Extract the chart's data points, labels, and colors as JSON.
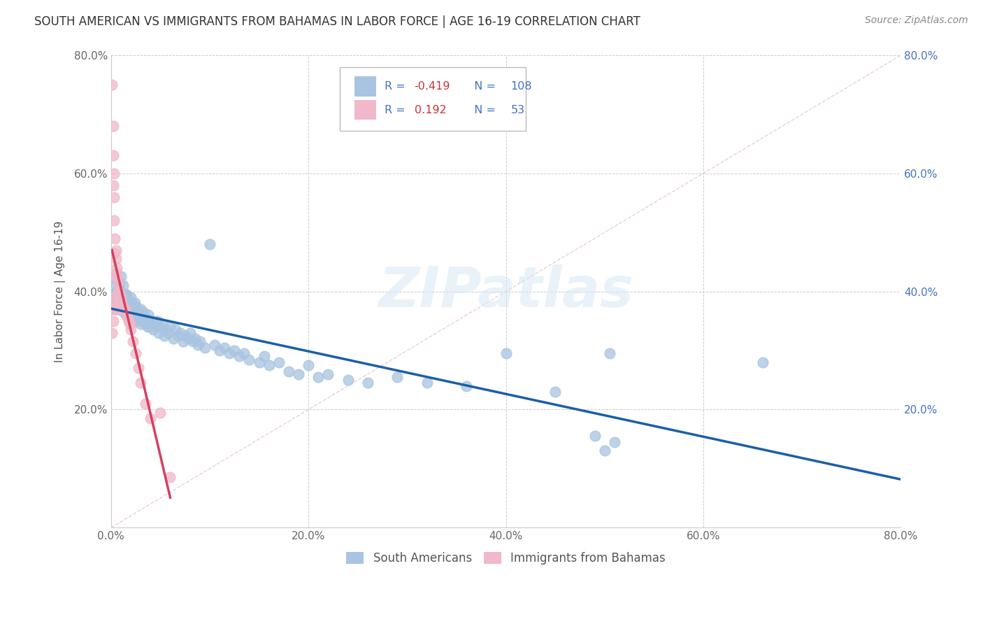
{
  "title": "SOUTH AMERICAN VS IMMIGRANTS FROM BAHAMAS IN LABOR FORCE | AGE 16-19 CORRELATION CHART",
  "source": "Source: ZipAtlas.com",
  "ylabel": "In Labor Force | Age 16-19",
  "xlim": [
    0,
    0.8
  ],
  "ylim": [
    0,
    0.8
  ],
  "xticks": [
    0.0,
    0.2,
    0.4,
    0.6,
    0.8
  ],
  "yticks": [
    0.0,
    0.2,
    0.4,
    0.6,
    0.8
  ],
  "blue_R": -0.419,
  "blue_N": 108,
  "pink_R": 0.192,
  "pink_N": 53,
  "blue_color": "#a8c4e0",
  "blue_line_color": "#1a5fa8",
  "pink_color": "#f0b8c8",
  "pink_line_color": "#d44060",
  "legend_label_blue": "South Americans",
  "legend_label_pink": "Immigrants from Bahamas",
  "watermark": "ZIPatlas",
  "background_color": "#ffffff",
  "grid_color": "#cccccc",
  "blue_scatter_x": [
    0.002,
    0.003,
    0.004,
    0.005,
    0.005,
    0.006,
    0.006,
    0.007,
    0.007,
    0.008,
    0.008,
    0.009,
    0.009,
    0.01,
    0.01,
    0.01,
    0.011,
    0.011,
    0.012,
    0.012,
    0.013,
    0.013,
    0.014,
    0.014,
    0.015,
    0.015,
    0.016,
    0.016,
    0.017,
    0.018,
    0.018,
    0.019,
    0.02,
    0.02,
    0.021,
    0.022,
    0.023,
    0.023,
    0.024,
    0.025,
    0.025,
    0.026,
    0.027,
    0.028,
    0.03,
    0.03,
    0.031,
    0.032,
    0.033,
    0.035,
    0.036,
    0.037,
    0.038,
    0.04,
    0.042,
    0.043,
    0.045,
    0.047,
    0.048,
    0.05,
    0.052,
    0.054,
    0.056,
    0.058,
    0.06,
    0.063,
    0.065,
    0.068,
    0.07,
    0.073,
    0.075,
    0.078,
    0.08,
    0.083,
    0.085,
    0.088,
    0.09,
    0.095,
    0.1,
    0.105,
    0.11,
    0.115,
    0.12,
    0.125,
    0.13,
    0.135,
    0.14,
    0.15,
    0.155,
    0.16,
    0.17,
    0.18,
    0.19,
    0.2,
    0.21,
    0.22,
    0.24,
    0.26,
    0.29,
    0.32,
    0.36,
    0.4,
    0.45,
    0.49,
    0.5,
    0.505,
    0.51,
    0.66
  ],
  "blue_scatter_y": [
    0.395,
    0.38,
    0.41,
    0.42,
    0.39,
    0.4,
    0.43,
    0.375,
    0.395,
    0.385,
    0.405,
    0.37,
    0.415,
    0.395,
    0.38,
    0.425,
    0.39,
    0.37,
    0.395,
    0.41,
    0.38,
    0.365,
    0.395,
    0.375,
    0.39,
    0.36,
    0.395,
    0.375,
    0.38,
    0.37,
    0.385,
    0.365,
    0.39,
    0.355,
    0.38,
    0.365,
    0.375,
    0.355,
    0.38,
    0.36,
    0.375,
    0.35,
    0.365,
    0.355,
    0.37,
    0.345,
    0.36,
    0.35,
    0.365,
    0.345,
    0.355,
    0.34,
    0.36,
    0.34,
    0.35,
    0.335,
    0.345,
    0.35,
    0.33,
    0.34,
    0.345,
    0.325,
    0.335,
    0.33,
    0.34,
    0.32,
    0.335,
    0.325,
    0.33,
    0.315,
    0.325,
    0.32,
    0.33,
    0.315,
    0.32,
    0.31,
    0.315,
    0.305,
    0.48,
    0.31,
    0.3,
    0.305,
    0.295,
    0.3,
    0.29,
    0.295,
    0.285,
    0.28,
    0.29,
    0.275,
    0.28,
    0.265,
    0.26,
    0.275,
    0.255,
    0.26,
    0.25,
    0.245,
    0.255,
    0.245,
    0.24,
    0.295,
    0.23,
    0.155,
    0.13,
    0.295,
    0.145,
    0.28
  ],
  "pink_scatter_x": [
    0.001,
    0.001,
    0.001,
    0.002,
    0.002,
    0.002,
    0.002,
    0.003,
    0.003,
    0.003,
    0.003,
    0.003,
    0.004,
    0.004,
    0.004,
    0.005,
    0.005,
    0.005,
    0.005,
    0.006,
    0.006,
    0.006,
    0.006,
    0.007,
    0.007,
    0.007,
    0.007,
    0.008,
    0.008,
    0.008,
    0.009,
    0.009,
    0.01,
    0.01,
    0.011,
    0.011,
    0.012,
    0.013,
    0.014,
    0.015,
    0.016,
    0.017,
    0.018,
    0.019,
    0.02,
    0.022,
    0.025,
    0.028,
    0.03,
    0.035,
    0.04,
    0.05,
    0.06
  ],
  "pink_scatter_y": [
    0.75,
    0.37,
    0.33,
    0.68,
    0.63,
    0.58,
    0.35,
    0.6,
    0.56,
    0.52,
    0.385,
    0.37,
    0.49,
    0.465,
    0.37,
    0.47,
    0.455,
    0.43,
    0.37,
    0.44,
    0.425,
    0.395,
    0.37,
    0.415,
    0.4,
    0.385,
    0.37,
    0.4,
    0.385,
    0.37,
    0.39,
    0.37,
    0.39,
    0.37,
    0.38,
    0.37,
    0.375,
    0.37,
    0.37,
    0.365,
    0.36,
    0.355,
    0.35,
    0.345,
    0.335,
    0.315,
    0.295,
    0.27,
    0.245,
    0.21,
    0.185,
    0.195,
    0.085
  ]
}
